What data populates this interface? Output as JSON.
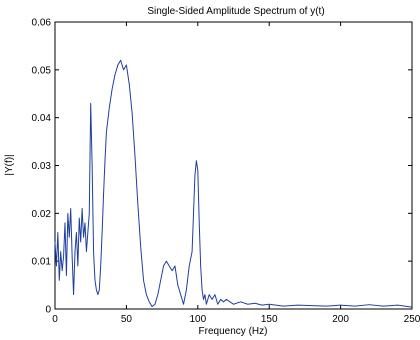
{
  "chart_data": {
    "type": "line",
    "title": "Single-Sided Amplitude Spectrum of y(t)",
    "xlabel": "Frequency (Hz)",
    "ylabel": "|Y(f)|",
    "xlim": [
      0,
      250
    ],
    "ylim": [
      0,
      0.06
    ],
    "grid": false,
    "legend": "none",
    "x_ticks": [
      "0",
      "50",
      "100",
      "150",
      "200",
      "250"
    ],
    "y_ticks": [
      "0",
      "0.01",
      "0.02",
      "0.03",
      "0.04",
      "0.05",
      "0.06"
    ],
    "line_color": "#1f3fa0",
    "series": [
      {
        "x": [
          0,
          1,
          2,
          3,
          4,
          5,
          6,
          7,
          8,
          9,
          10,
          11,
          12,
          13,
          14,
          15,
          16,
          17,
          18,
          19,
          20,
          21,
          22,
          23,
          24,
          25,
          26,
          27,
          28,
          29,
          30,
          31,
          32,
          33,
          34,
          35,
          36,
          38,
          40,
          42,
          44,
          46,
          48,
          50,
          52,
          54,
          56,
          58,
          60,
          62,
          64,
          66,
          68,
          70,
          72,
          74,
          76,
          78,
          80,
          82,
          84,
          86,
          88,
          90,
          92,
          94,
          96,
          97,
          98,
          99,
          100,
          101,
          102,
          103,
          104,
          105,
          106,
          108,
          110,
          112,
          114,
          116,
          118,
          120,
          125,
          130,
          135,
          140,
          145,
          150,
          160,
          170,
          180,
          190,
          200,
          210,
          220,
          230,
          240,
          250
        ],
        "y": [
          0.014,
          0.009,
          0.016,
          0.006,
          0.012,
          0.008,
          0.011,
          0.018,
          0.007,
          0.02,
          0.015,
          0.021,
          0.011,
          0.003,
          0.012,
          0.016,
          0.009,
          0.019,
          0.014,
          0.021,
          0.015,
          0.018,
          0.012,
          0.016,
          0.02,
          0.043,
          0.03,
          0.012,
          0.006,
          0.004,
          0.003,
          0.004,
          0.009,
          0.016,
          0.024,
          0.031,
          0.037,
          0.042,
          0.046,
          0.049,
          0.051,
          0.052,
          0.05,
          0.051,
          0.047,
          0.041,
          0.032,
          0.022,
          0.013,
          0.006,
          0.003,
          0.0015,
          0.0005,
          0.001,
          0.003,
          0.006,
          0.009,
          0.01,
          0.009,
          0.008,
          0.009,
          0.005,
          0.003,
          0.001,
          0.004,
          0.009,
          0.012,
          0.02,
          0.028,
          0.031,
          0.029,
          0.018,
          0.009,
          0.004,
          0.002,
          0.003,
          0.001,
          0.003,
          0.002,
          0.003,
          0.001,
          0.002,
          0.0015,
          0.002,
          0.001,
          0.0015,
          0.001,
          0.0012,
          0.0008,
          0.001,
          0.0006,
          0.0008,
          0.0007,
          0.0006,
          0.0008,
          0.0006,
          0.0009,
          0.0006,
          0.0008,
          0.0004
        ]
      }
    ]
  }
}
